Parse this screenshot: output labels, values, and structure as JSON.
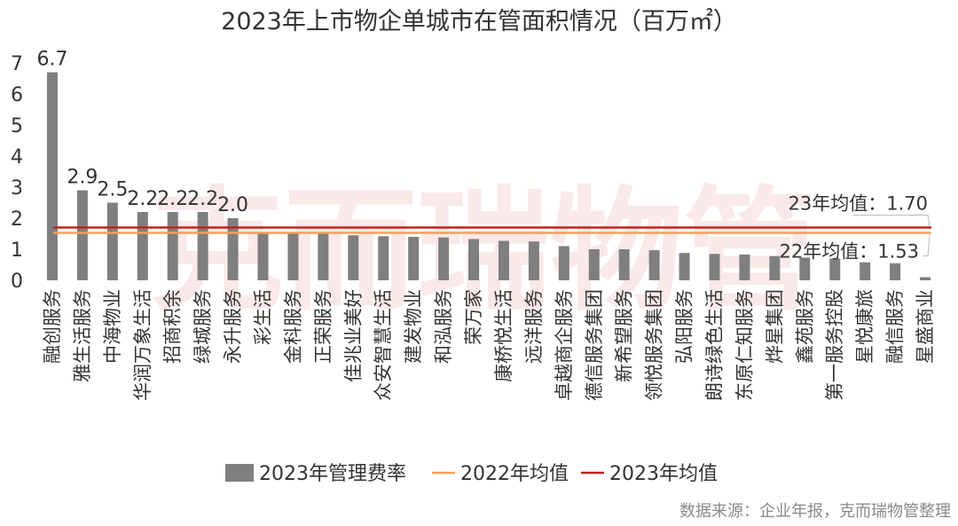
{
  "chart_data": {
    "type": "bar",
    "title": "2023年上市物企单城市在管面积情况（百万㎡）",
    "categories": [
      "融创服务",
      "雅生活服务",
      "中海物业",
      "华润万象生活",
      "招商积余",
      "绿城服务",
      "永升服务",
      "彩生活",
      "金科服务",
      "正荣服务",
      "佳兆业美好",
      "众安智慧生活",
      "建发物业",
      "和泓服务",
      "荣万家",
      "康桥悦生活",
      "远洋服务",
      "卓越商企服务",
      "德信服务集团",
      "新希望服务",
      "领悦服务集团",
      "弘阳服务",
      "朗诗绿色生活",
      "东原仁知服务",
      "烨星集团",
      "鑫苑服务",
      "第一服务控股",
      "星悦康旅",
      "融信服务",
      "星盛商业"
    ],
    "series": [
      {
        "name": "2023年管理费率",
        "values": [
          6.7,
          2.9,
          2.5,
          2.2,
          2.2,
          2.2,
          2.0,
          1.55,
          1.53,
          1.52,
          1.45,
          1.42,
          1.4,
          1.38,
          1.33,
          1.27,
          1.25,
          1.1,
          1.0,
          1.0,
          0.97,
          0.88,
          0.85,
          0.83,
          0.78,
          0.73,
          0.7,
          0.58,
          0.55,
          0.1
        ],
        "color": "#7f7f7f"
      }
    ],
    "data_labels": [
      "6.7",
      "2.9",
      "2.5",
      "2.2",
      "2.2",
      "2.2",
      "2.0"
    ],
    "averages": [
      {
        "name": "2022年均值",
        "value": 1.53,
        "color": "#f4a15d",
        "label": "22年均值：1.53"
      },
      {
        "name": "2023年均值",
        "value": 1.7,
        "color": "#c0221e",
        "label": "23年均值：1.70"
      }
    ],
    "yticks": [
      "0",
      "1",
      "2",
      "3",
      "4",
      "5",
      "6",
      "7"
    ],
    "ylim": [
      0,
      7
    ],
    "xlabel": "",
    "ylabel": "",
    "legend_position": "bottom",
    "grid": false
  },
  "source": "数据来源：企业年报，克而瑞物管整理",
  "watermark": "克而瑞物管"
}
